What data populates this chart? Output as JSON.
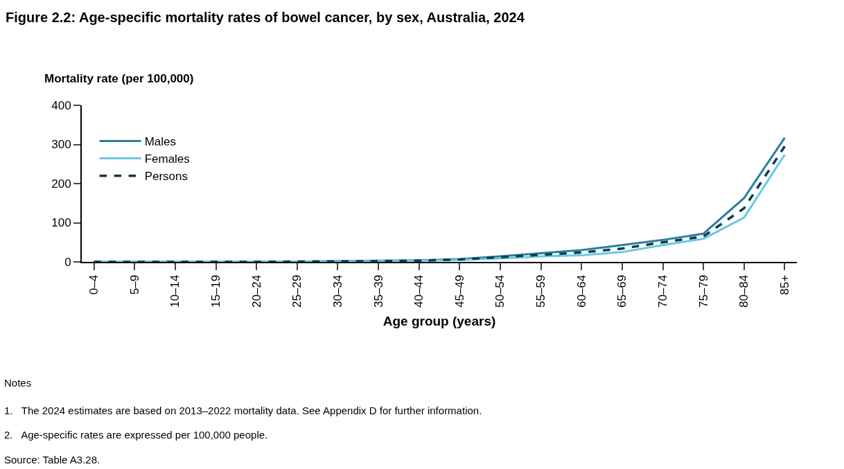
{
  "chart_data": {
    "type": "line",
    "title": "Figure 2.2: Age-specific mortality rates of bowel cancer, by sex, Australia, 2024",
    "xlabel": "Age group (years)",
    "ylabel": "Mortality rate (per 100,000)",
    "categories": [
      "0–4",
      "5–9",
      "10–14",
      "15–19",
      "20–24",
      "25–29",
      "30–34",
      "35–39",
      "40–44",
      "45–49",
      "50–54",
      "55–59",
      "60–64",
      "65–69",
      "70–74",
      "75–79",
      "80–84",
      "85+"
    ],
    "series": [
      {
        "name": "Males",
        "color": "#2b7f9a",
        "line_style": "solid",
        "values": [
          0,
          0,
          0,
          0,
          0,
          1,
          2,
          3,
          4,
          7,
          14,
          22,
          30,
          43,
          56,
          72,
          163,
          317
        ]
      },
      {
        "name": "Females",
        "color": "#6ac7e6",
        "line_style": "solid",
        "values": [
          0,
          0,
          0,
          0,
          0,
          1,
          1,
          2,
          3,
          5,
          9,
          14,
          17,
          25,
          43,
          59,
          113,
          274
        ]
      },
      {
        "name": "Persons",
        "color": "#0a3d4f",
        "line_style": "dashed",
        "values": [
          0,
          0,
          0,
          0,
          0,
          1,
          1,
          2,
          3,
          6,
          12,
          18,
          24,
          34,
          50,
          65,
          137,
          295
        ]
      }
    ],
    "ylim": [
      0,
      400
    ],
    "yticks": [
      0,
      100,
      200,
      300,
      400
    ],
    "legend": "top left",
    "marker": "none",
    "annotations": [
      "Notes",
      "1.   The 2024 estimates are based on 2013–2022 mortality data. See Appendix D for further information.",
      "2.   Age-specific rates are expressed per 100,000 people.",
      "Source: Table A3.28."
    ]
  }
}
